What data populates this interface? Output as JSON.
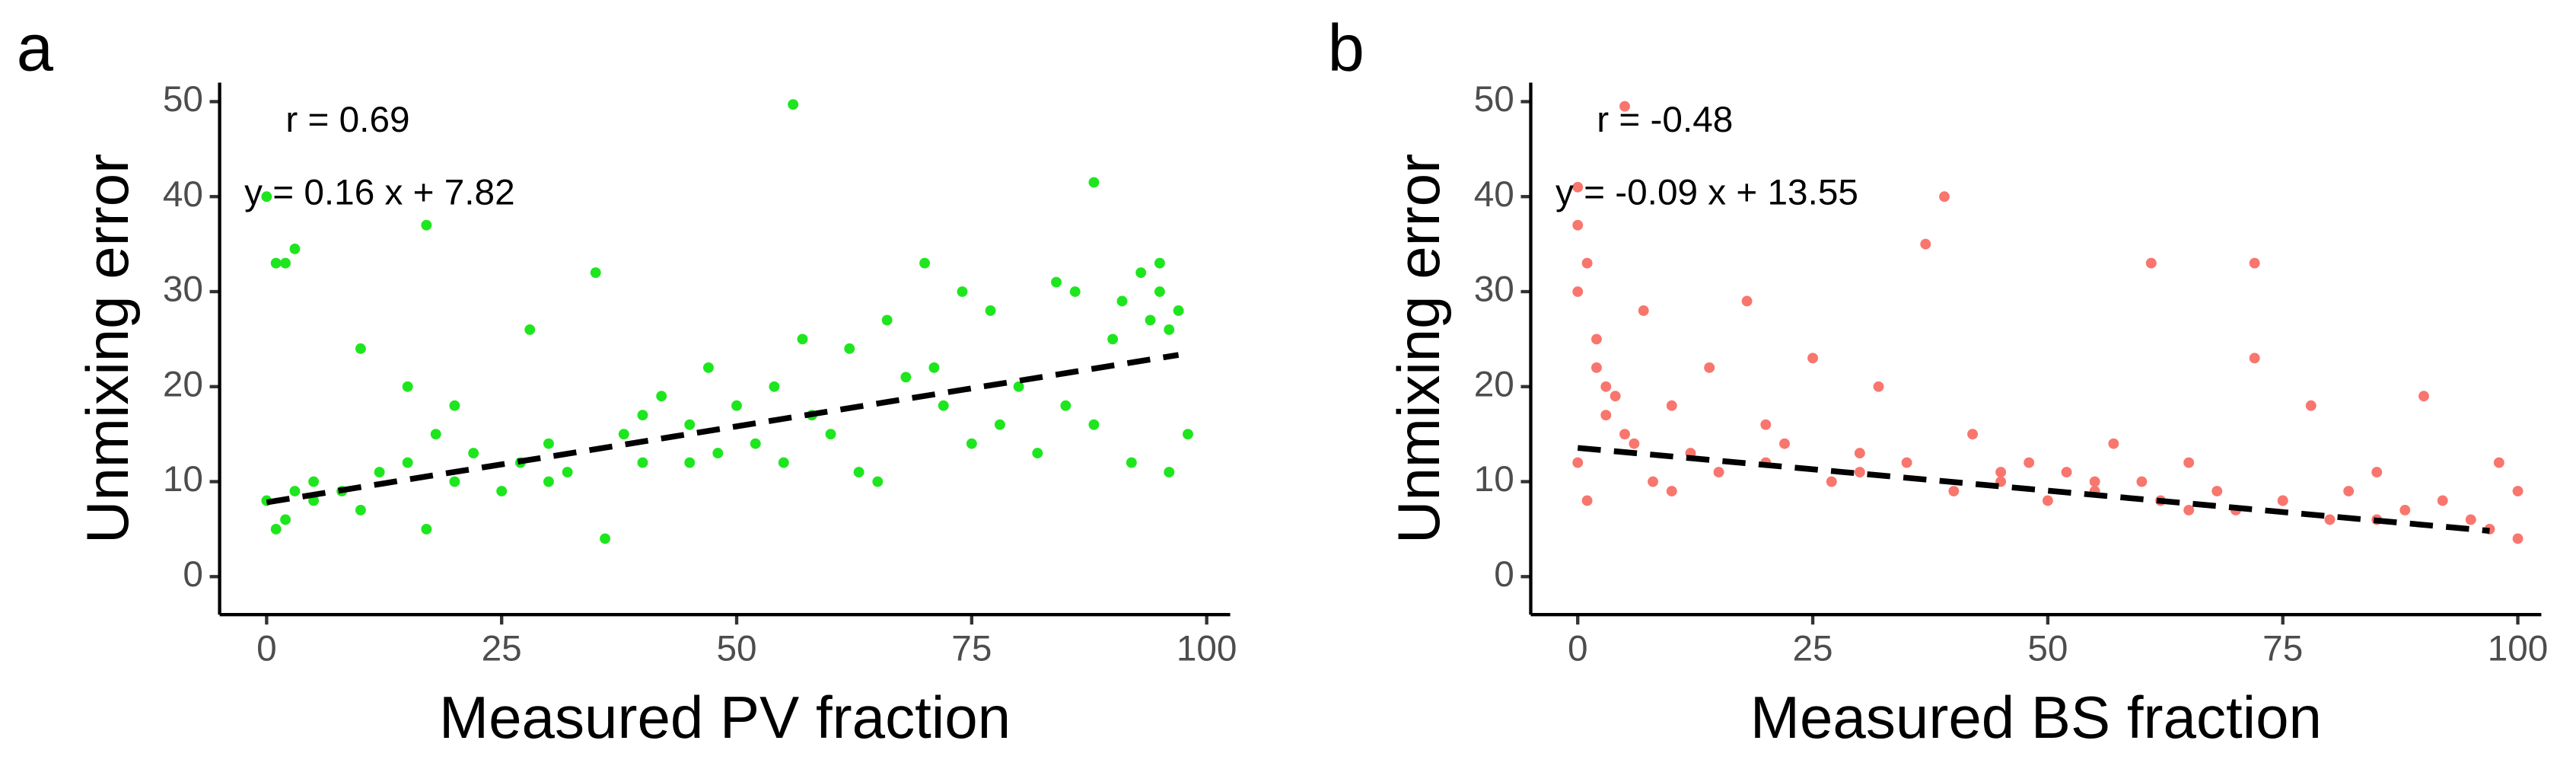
{
  "chart_data": [
    {
      "type": "scatter",
      "panel_label": "a",
      "xlabel": "Measured PV fraction",
      "ylabel": "Unmixing error",
      "annotations": [
        "r = 0.69",
        "y = 0.16 x + 7.82"
      ],
      "color": "#1ee61e",
      "x": [
        0,
        0,
        1,
        2,
        3,
        5,
        8,
        10,
        12,
        15,
        17,
        17,
        18,
        20,
        22,
        25,
        27,
        28,
        30,
        32,
        35,
        36,
        38,
        40,
        42,
        45,
        47,
        48,
        50,
        52,
        54,
        55,
        56,
        57,
        58,
        60,
        62,
        63,
        65,
        66,
        68,
        70,
        71,
        72,
        74,
        75,
        77,
        78,
        80,
        82,
        84,
        85,
        86,
        88,
        88,
        90,
        91,
        92,
        93,
        94,
        95,
        95,
        96,
        96,
        97,
        98,
        2,
        5,
        10,
        15,
        20,
        30,
        40,
        45,
        1,
        3
      ],
      "y": [
        40,
        8,
        33,
        33,
        34.5,
        10,
        9,
        7,
        11,
        12,
        37,
        5,
        15,
        10,
        13,
        9,
        12,
        26,
        14,
        11,
        32,
        4,
        15,
        12,
        19,
        16,
        22,
        13,
        18,
        14,
        20,
        12,
        49.7,
        25,
        17,
        15,
        24,
        11,
        10,
        27,
        21,
        33,
        22,
        18,
        30,
        14,
        28,
        16,
        20,
        13,
        31,
        18,
        30,
        41.5,
        16,
        25,
        29,
        12,
        32,
        27,
        33,
        30,
        11,
        26,
        28,
        15,
        6,
        8,
        24,
        20,
        18,
        10,
        17,
        12,
        5,
        9
      ],
      "fit_line": {
        "x": [
          0,
          97
        ],
        "y": [
          7.82,
          23.34
        ]
      },
      "xlim": [
        -5,
        102.5
      ],
      "ylim": [
        -4,
        52
      ],
      "xticks": [
        0,
        25,
        50,
        75,
        100
      ],
      "yticks": [
        0,
        10,
        20,
        30,
        40,
        50
      ]
    },
    {
      "type": "scatter",
      "panel_label": "b",
      "xlabel": "Measured BS fraction",
      "ylabel": "Unmixing error",
      "annotations": [
        "r = -0.48",
        "y = -0.09 x + 13.55"
      ],
      "color": "#f8766d",
      "x": [
        0,
        0,
        0,
        0,
        1,
        1,
        2,
        3,
        5,
        5,
        7,
        8,
        10,
        12,
        14,
        15,
        18,
        20,
        22,
        25,
        27,
        30,
        32,
        35,
        37,
        39,
        40,
        42,
        45,
        48,
        50,
        52,
        55,
        57,
        60,
        61,
        62,
        65,
        68,
        70,
        72,
        72,
        75,
        78,
        80,
        82,
        85,
        88,
        90,
        92,
        95,
        97,
        98,
        100,
        100,
        3,
        6,
        10,
        20,
        30,
        45,
        55,
        65,
        75,
        85,
        2,
        4
      ],
      "y": [
        41,
        37,
        30,
        12,
        33,
        8,
        25,
        20,
        49.5,
        15,
        28,
        10,
        18,
        13,
        22,
        11,
        29,
        12,
        14,
        23,
        10,
        11,
        20,
        12,
        35,
        40,
        9,
        15,
        10,
        12,
        8,
        11,
        9,
        14,
        10,
        33,
        8,
        12,
        9,
        7,
        33,
        23,
        8,
        18,
        6,
        9,
        11,
        7,
        19,
        8,
        6,
        5,
        12,
        9,
        4,
        17,
        14,
        9,
        16,
        13,
        11,
        10,
        7,
        8,
        6,
        22,
        19
      ],
      "fit_line": {
        "x": [
          0,
          97
        ],
        "y": [
          13.55,
          4.82
        ]
      },
      "xlim": [
        -5,
        102.5
      ],
      "ylim": [
        -4,
        52
      ],
      "xticks": [
        0,
        25,
        50,
        75,
        100
      ],
      "yticks": [
        0,
        10,
        20,
        30,
        40,
        50
      ]
    }
  ]
}
